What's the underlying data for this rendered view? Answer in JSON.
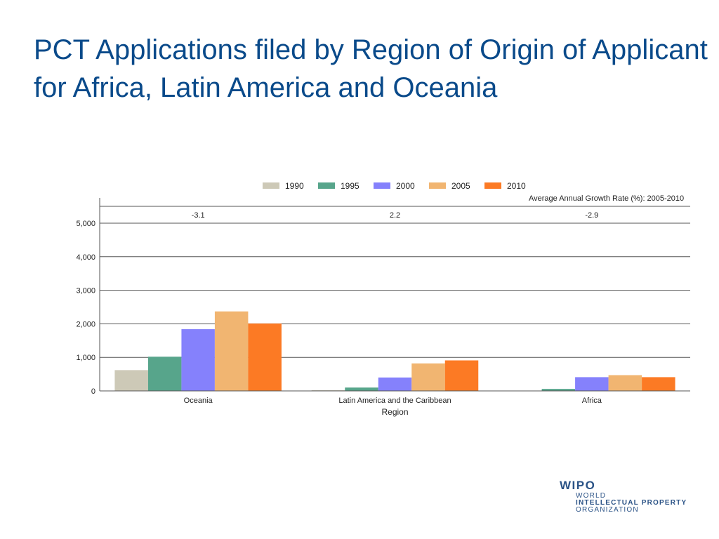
{
  "slide": {
    "title": "PCT Applications filed by Region of Origin of Applicant for Africa, Latin America and Oceania"
  },
  "logo": {
    "main": "WIPO",
    "line1": "WORLD",
    "line2": "INTELLECTUAL PROPERTY",
    "line3": "ORGANIZATION"
  },
  "colors": {
    "title": "#0a4a8a",
    "axis_text": "#222222",
    "grid": "#555555"
  },
  "chart_data": {
    "type": "bar",
    "xlabel": "Region",
    "ylabel": "",
    "ylim": [
      0,
      5000
    ],
    "yticks": [
      0,
      1000,
      2000,
      3000,
      4000,
      5000
    ],
    "ytick_labels": [
      "0",
      "1,000",
      "2,000",
      "3,000",
      "4,000",
      "5,000"
    ],
    "grid": true,
    "legend_position": "top",
    "categories": [
      "Oceania",
      "Latin America and the Caribbean",
      "Africa"
    ],
    "series": [
      {
        "name": "1990",
        "color": "#cdc9b7",
        "values": [
          620,
          20,
          0
        ]
      },
      {
        "name": "1995",
        "color": "#57a58b",
        "values": [
          1020,
          100,
          60
        ]
      },
      {
        "name": "2000",
        "color": "#8581fc",
        "values": [
          1840,
          400,
          410
        ]
      },
      {
        "name": "2005",
        "color": "#f1b571",
        "values": [
          2370,
          820,
          470
        ]
      },
      {
        "name": "2010",
        "color": "#fc7a24",
        "values": [
          2010,
          910,
          410
        ]
      }
    ],
    "growth_rate_header": "Average Annual Growth Rate (%): 2005-2010",
    "growth_rates": [
      "-3.1",
      "2.2",
      "-2.9"
    ]
  }
}
